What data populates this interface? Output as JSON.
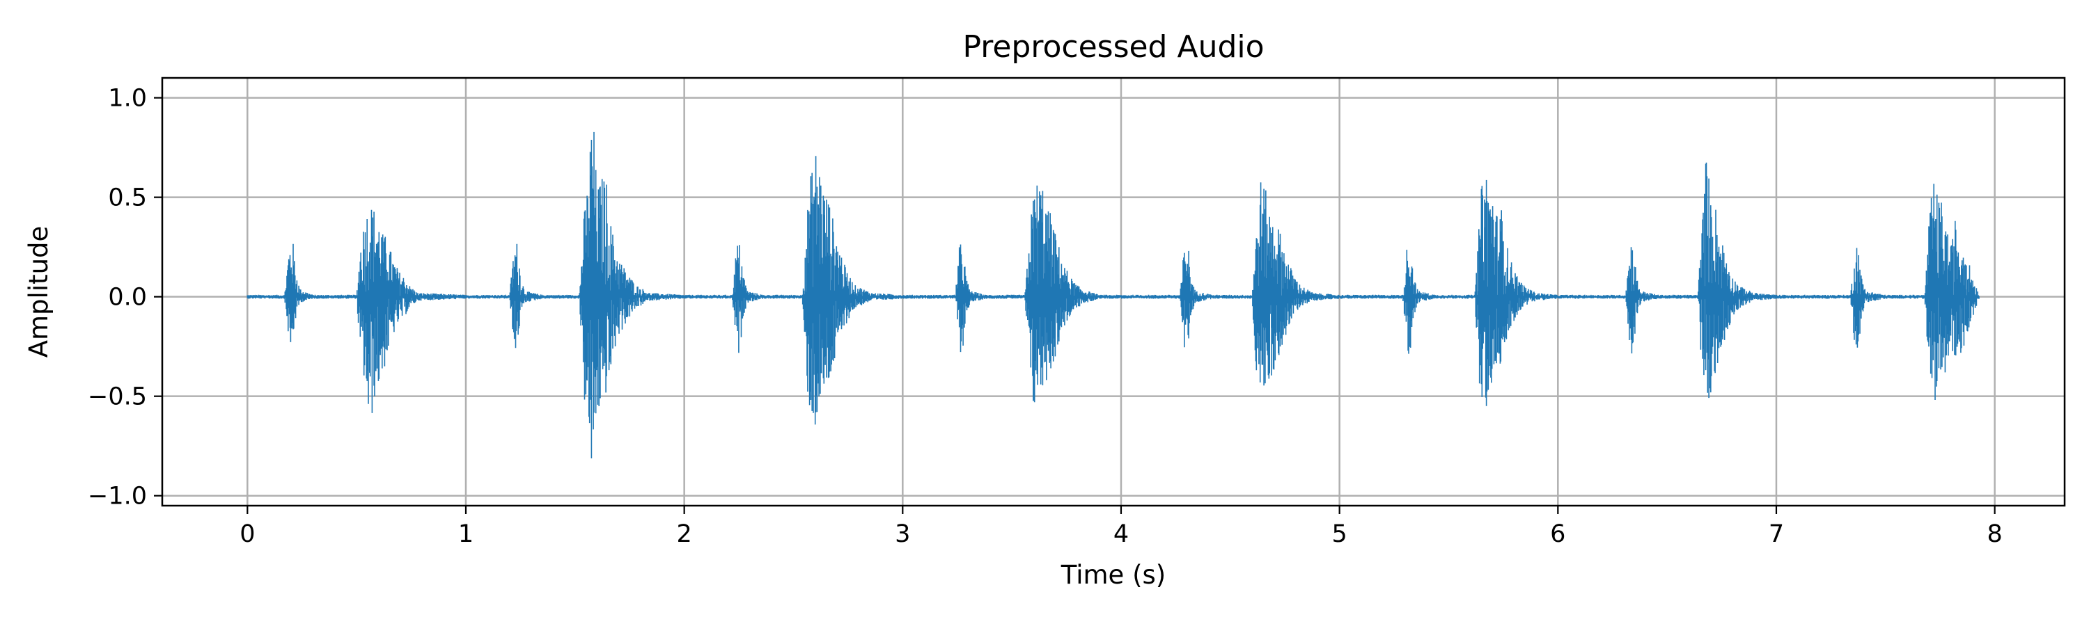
{
  "chart_data": {
    "type": "line",
    "title": "Preprocessed Audio",
    "xlabel": "Time (s)",
    "ylabel": "Amplitude",
    "xlim": [
      -0.39,
      8.32
    ],
    "ylim": [
      -1.05,
      1.1
    ],
    "x_ticks": [
      0,
      1,
      2,
      3,
      4,
      5,
      6,
      7,
      8
    ],
    "x_tick_labels": [
      "0",
      "1",
      "2",
      "3",
      "4",
      "5",
      "6",
      "7",
      "8"
    ],
    "y_ticks": [
      -1.0,
      -0.5,
      0.0,
      0.5,
      1.0
    ],
    "y_tick_labels": [
      "−1.0",
      "−0.5",
      "0.0",
      "0.5",
      "1.0"
    ],
    "grid": true,
    "color": "#1f77b4",
    "duration_s": 7.93,
    "series": [
      {
        "envelope": {
          "x": [
            0.0,
            0.17,
            0.19,
            0.2,
            0.21,
            0.22,
            0.24,
            0.3,
            0.5,
            0.52,
            0.54,
            0.56,
            0.58,
            0.6,
            0.62,
            0.64,
            0.66,
            0.68,
            0.7,
            0.72,
            0.74,
            0.78,
            1.0,
            1.2,
            1.22,
            1.23,
            1.24,
            1.25,
            1.27,
            1.35,
            1.52,
            1.54,
            1.56,
            1.58,
            1.6,
            1.62,
            1.64,
            1.66,
            1.68,
            1.7,
            1.74,
            1.78,
            1.84,
            2.0,
            2.22,
            2.24,
            2.25,
            2.26,
            2.27,
            2.29,
            2.36,
            2.54,
            2.56,
            2.58,
            2.6,
            2.62,
            2.64,
            2.66,
            2.68,
            2.7,
            2.72,
            2.74,
            2.78,
            2.86,
            3.0,
            3.24,
            3.26,
            3.27,
            3.28,
            3.29,
            3.31,
            3.38,
            3.56,
            3.58,
            3.6,
            3.62,
            3.64,
            3.66,
            3.68,
            3.7,
            3.72,
            3.74,
            3.78,
            3.82,
            3.9,
            4.0,
            4.27,
            4.29,
            4.3,
            4.31,
            4.32,
            4.34,
            4.42,
            4.6,
            4.62,
            4.64,
            4.66,
            4.68,
            4.7,
            4.72,
            4.74,
            4.76,
            4.78,
            4.82,
            4.88,
            5.0,
            5.29,
            5.31,
            5.32,
            5.33,
            5.34,
            5.36,
            5.44,
            5.62,
            5.64,
            5.66,
            5.68,
            5.7,
            5.72,
            5.74,
            5.76,
            5.78,
            5.8,
            5.84,
            5.9,
            6.0,
            6.31,
            6.33,
            6.34,
            6.35,
            6.36,
            6.38,
            6.46,
            6.64,
            6.66,
            6.68,
            6.7,
            6.72,
            6.74,
            6.76,
            6.78,
            6.8,
            6.84,
            6.9,
            7.0,
            7.34,
            7.36,
            7.37,
            7.38,
            7.39,
            7.41,
            7.5,
            7.68,
            7.7,
            7.72,
            7.74,
            7.76,
            7.78,
            7.8,
            7.82,
            7.84,
            7.86,
            7.88,
            7.9,
            7.93
          ],
          "y_max": [
            0.01,
            0.01,
            0.25,
            0.29,
            0.27,
            0.15,
            0.04,
            0.01,
            0.01,
            0.3,
            0.42,
            0.48,
            0.45,
            0.4,
            0.32,
            0.3,
            0.22,
            0.16,
            0.12,
            0.1,
            0.06,
            0.02,
            0.01,
            0.01,
            0.24,
            0.29,
            0.26,
            0.12,
            0.03,
            0.01,
            0.01,
            0.4,
            0.6,
            1.0,
            0.55,
            0.6,
            0.63,
            0.4,
            0.28,
            0.2,
            0.12,
            0.06,
            0.02,
            0.01,
            0.01,
            0.27,
            0.28,
            0.24,
            0.12,
            0.03,
            0.01,
            0.01,
            0.4,
            0.62,
            0.76,
            0.68,
            0.55,
            0.5,
            0.4,
            0.3,
            0.22,
            0.14,
            0.06,
            0.02,
            0.01,
            0.01,
            0.26,
            0.28,
            0.24,
            0.1,
            0.03,
            0.01,
            0.01,
            0.32,
            0.55,
            0.6,
            0.58,
            0.45,
            0.42,
            0.32,
            0.24,
            0.16,
            0.08,
            0.04,
            0.01,
            0.01,
            0.01,
            0.27,
            0.29,
            0.24,
            0.1,
            0.03,
            0.01,
            0.01,
            0.35,
            0.6,
            0.55,
            0.44,
            0.4,
            0.36,
            0.28,
            0.2,
            0.14,
            0.06,
            0.02,
            0.01,
            0.01,
            0.27,
            0.29,
            0.24,
            0.1,
            0.03,
            0.01,
            0.01,
            0.38,
            0.72,
            0.6,
            0.55,
            0.42,
            0.46,
            0.3,
            0.2,
            0.14,
            0.06,
            0.02,
            0.01,
            0.01,
            0.27,
            0.29,
            0.24,
            0.1,
            0.03,
            0.01,
            0.01,
            0.36,
            0.75,
            0.5,
            0.48,
            0.32,
            0.26,
            0.18,
            0.1,
            0.05,
            0.02,
            0.01,
            0.01,
            0.26,
            0.28,
            0.22,
            0.1,
            0.03,
            0.01,
            0.01,
            0.4,
            0.6,
            0.5,
            0.48,
            0.35,
            0.25,
            0.4,
            0.25,
            0.3,
            0.18,
            0.1,
            0.01
          ],
          "y_min": [
            -0.01,
            -0.01,
            -0.22,
            -0.31,
            -0.2,
            -0.12,
            -0.03,
            -0.01,
            -0.01,
            -0.35,
            -0.45,
            -0.72,
            -0.52,
            -0.46,
            -0.4,
            -0.3,
            -0.22,
            -0.16,
            -0.12,
            -0.1,
            -0.06,
            -0.02,
            -0.01,
            -0.01,
            -0.24,
            -0.31,
            -0.22,
            -0.1,
            -0.03,
            -0.01,
            -0.01,
            -0.5,
            -0.7,
            -0.95,
            -0.6,
            -0.58,
            -0.5,
            -0.42,
            -0.28,
            -0.2,
            -0.12,
            -0.06,
            -0.02,
            -0.01,
            -0.01,
            -0.27,
            -0.31,
            -0.22,
            -0.1,
            -0.03,
            -0.01,
            -0.01,
            -0.45,
            -0.62,
            -0.67,
            -0.6,
            -0.5,
            -0.45,
            -0.38,
            -0.28,
            -0.2,
            -0.14,
            -0.06,
            -0.02,
            -0.01,
            -0.01,
            -0.26,
            -0.31,
            -0.22,
            -0.1,
            -0.03,
            -0.01,
            -0.01,
            -0.4,
            -0.58,
            -0.5,
            -0.48,
            -0.42,
            -0.38,
            -0.3,
            -0.22,
            -0.15,
            -0.08,
            -0.04,
            -0.01,
            -0.01,
            -0.01,
            -0.27,
            -0.31,
            -0.22,
            -0.1,
            -0.03,
            -0.01,
            -0.01,
            -0.42,
            -0.5,
            -0.47,
            -0.44,
            -0.38,
            -0.3,
            -0.26,
            -0.18,
            -0.12,
            -0.05,
            -0.02,
            -0.01,
            -0.01,
            -0.27,
            -0.31,
            -0.22,
            -0.1,
            -0.03,
            -0.01,
            -0.01,
            -0.5,
            -0.6,
            -0.55,
            -0.48,
            -0.38,
            -0.34,
            -0.28,
            -0.18,
            -0.12,
            -0.05,
            -0.02,
            -0.01,
            -0.01,
            -0.27,
            -0.31,
            -0.22,
            -0.1,
            -0.03,
            -0.01,
            -0.01,
            -0.4,
            -0.6,
            -0.5,
            -0.42,
            -0.3,
            -0.24,
            -0.16,
            -0.1,
            -0.05,
            -0.02,
            -0.01,
            -0.01,
            -0.26,
            -0.31,
            -0.22,
            -0.1,
            -0.03,
            -0.01,
            -0.01,
            -0.5,
            -0.55,
            -0.48,
            -0.42,
            -0.4,
            -0.32,
            -0.3,
            -0.3,
            -0.26,
            -0.16,
            -0.1,
            -0.01
          ]
        }
      }
    ]
  }
}
